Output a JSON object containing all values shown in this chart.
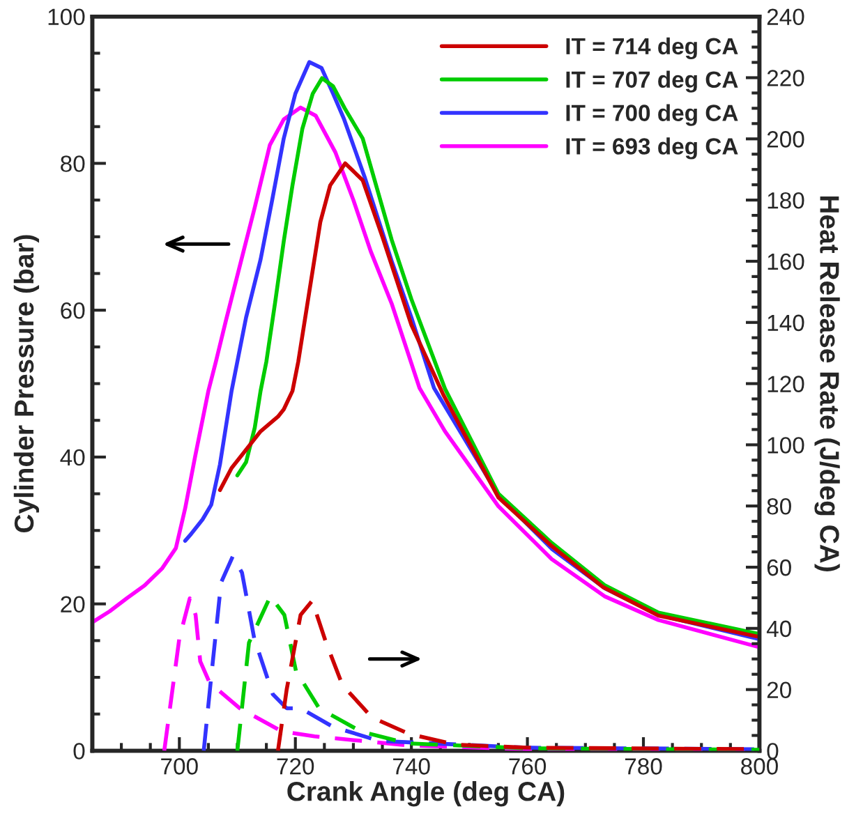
{
  "chart_data": {
    "type": "line",
    "xlabel": "Crank Angle (deg CA)",
    "ylabel": "Cylinder Pressure (bar)",
    "y2label": "Heat Release Rate (J/deg CA)",
    "xlim": [
      685,
      800
    ],
    "xticks": [
      700,
      720,
      740,
      760,
      780,
      800
    ],
    "ylim": [
      0,
      100
    ],
    "yticks": [
      0,
      20,
      40,
      60,
      80,
      100
    ],
    "y2lim": [
      0,
      240
    ],
    "y2ticks": [
      0,
      20,
      40,
      60,
      80,
      100,
      120,
      140,
      160,
      180,
      200,
      220,
      240
    ],
    "legend": "top right",
    "grid": false,
    "line_style": "solid",
    "series": [
      {
        "name": "IT = 714 deg CA",
        "color": "#cc0000",
        "x": [
          707,
          709,
          711,
          714,
          717,
          718,
          719.5,
          720.5,
          722.7,
          724.3,
          726,
          728.6,
          731.6,
          735,
          740,
          745.5,
          755,
          764,
          773,
          782.6,
          800
        ],
        "values": [
          35.5,
          38.5,
          40.5,
          43.5,
          45.5,
          46.5,
          49,
          53,
          64,
          72,
          77,
          80,
          77.7,
          70,
          58,
          48.5,
          34.5,
          28,
          22.3,
          18.4,
          15.5
        ]
      },
      {
        "name": "IT = 707 deg CA",
        "color": "#00cc00",
        "x": [
          710,
          711.5,
          713,
          714,
          715,
          716.5,
          718,
          719.5,
          721.2,
          723,
          724.6,
          726.5,
          728.5,
          731.6,
          736.6,
          740,
          745.8,
          755,
          764.2,
          773.4,
          782.6,
          800
        ],
        "values": [
          37.5,
          39.3,
          44,
          49,
          53,
          61,
          69.4,
          77,
          84.7,
          89.5,
          91.6,
          90.5,
          87.5,
          83.4,
          69.6,
          61.5,
          49.3,
          35,
          28.3,
          22.5,
          18.8,
          15.9
        ]
      },
      {
        "name": "IT = 700 deg CA",
        "color": "#3333ff",
        "x": [
          701,
          702,
          704,
          705.5,
          707,
          709,
          711.5,
          714,
          716,
          718,
          720,
          722.4,
          724.5,
          726.5,
          728.4,
          732,
          736.6,
          740,
          743.9,
          755,
          764.2,
          773.4,
          782.6,
          800
        ],
        "values": [
          28.6,
          29.5,
          31.5,
          33.5,
          39,
          49,
          59,
          66.9,
          75,
          83.4,
          89.5,
          93.8,
          93,
          89.5,
          86,
          78,
          66.7,
          59,
          49.4,
          34.8,
          27.5,
          22.1,
          18.5,
          15.2
        ]
      },
      {
        "name": "IT = 693 deg CA",
        "color": "#ff00ff",
        "x": [
          685,
          688,
          691,
          694,
          697,
          699.4,
          701,
          702.7,
          705,
          706.3,
          708,
          710.7,
          713,
          715.6,
          718,
          720.9,
          723.5,
          726.9,
          730,
          733,
          736.6,
          741.4,
          745.8,
          755,
          764.2,
          773.4,
          782.6,
          800
        ],
        "values": [
          17.5,
          19,
          20.8,
          22.5,
          24.8,
          27.6,
          33,
          40,
          49,
          53,
          58.5,
          66.9,
          74,
          82.5,
          86,
          87.6,
          86.5,
          81.5,
          75,
          68,
          60.9,
          49.4,
          43.5,
          33.3,
          26.1,
          21,
          17.8,
          14.1
        ]
      },
      {
        "color": "#cc0000",
        "axis": "y2",
        "line_style": "dashed",
        "x": [
          717,
          718.5,
          720.9,
          722.9,
          725.3,
          728.1,
          733.2,
          739.6,
          747.6,
          760,
          800
        ],
        "values": [
          0,
          20,
          44.4,
          49,
          35.3,
          21.5,
          10.9,
          5.5,
          2,
          1,
          0.5
        ]
      },
      {
        "color": "#00cc00",
        "axis": "y2",
        "line_style": "dashed",
        "x": [
          710,
          712,
          715.7,
          718.1,
          720.1,
          724.1,
          731.3,
          739.3,
          760,
          800
        ],
        "values": [
          0,
          35.3,
          50.5,
          44.4,
          26.1,
          13.9,
          6.3,
          2.4,
          0.8,
          0.3
        ]
      },
      {
        "color": "#3333ff",
        "axis": "y2",
        "line_style": "dashed",
        "x": [
          704.2,
          705.6,
          707.2,
          709.2,
          710.8,
          712.9,
          716.1,
          718.5,
          720.9,
          726.5,
          734.5,
          760,
          800
        ],
        "values": [
          0,
          26.1,
          55,
          63.5,
          58.2,
          36.8,
          18.5,
          13.9,
          13.9,
          7.8,
          3.2,
          1,
          0.5
        ]
      },
      {
        "color": "#ff00ff",
        "axis": "y2",
        "line_style": "dashed",
        "x": [
          697.4,
          700,
          701.8,
          702.8,
          703.6,
          705.2,
          710.4,
          717.7,
          723.3,
          739.3,
          760,
          800
        ],
        "values": [
          0,
          36.8,
          49.8,
          44.4,
          29.2,
          22.3,
          13.9,
          6.3,
          4.7,
          1.8,
          0.5,
          0
        ]
      }
    ]
  }
}
